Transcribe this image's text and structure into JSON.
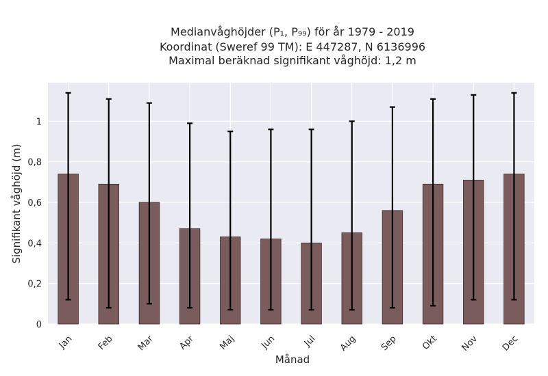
{
  "chart_data": {
    "type": "bar",
    "title_lines": [
      "Medianvåghöjder (P₁, P₉₉) för år 1979 - 2019",
      "Koordinat (Sweref 99 TM): E 447287, N 6136996",
      "Maximal beräknad signifikant våghöjd: 1,2 m"
    ],
    "xlabel": "Månad",
    "ylabel": "Signifikant våghöjd (m)",
    "categories": [
      "Jan",
      "Feb",
      "Mar",
      "Apr",
      "Maj",
      "Jun",
      "Jul",
      "Aug",
      "Sep",
      "Okt",
      "Nov",
      "Dec"
    ],
    "values": [
      0.74,
      0.69,
      0.6,
      0.47,
      0.43,
      0.42,
      0.4,
      0.45,
      0.56,
      0.69,
      0.71,
      0.74
    ],
    "error_low": [
      0.12,
      0.08,
      0.1,
      0.08,
      0.07,
      0.07,
      0.07,
      0.07,
      0.08,
      0.09,
      0.12,
      0.12
    ],
    "error_high": [
      1.14,
      1.11,
      1.09,
      0.99,
      0.95,
      0.96,
      0.96,
      1.0,
      1.07,
      1.11,
      1.13,
      1.14
    ],
    "yticks": [
      0,
      0.2,
      0.4,
      0.6,
      0.8,
      1.0
    ],
    "ytick_labels": [
      "0",
      "0,2",
      "0,4",
      "0,6",
      "0,8",
      "1"
    ],
    "ylim": [
      0,
      1.19
    ],
    "grid": true,
    "colors": {
      "bar": "#7b5c5c",
      "plot_background": "#eaeaf2",
      "errorbar": "#000000"
    }
  }
}
